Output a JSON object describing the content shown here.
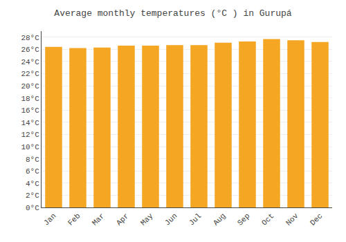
{
  "chart_data": {
    "type": "bar",
    "title": "Average monthly temperatures (°C ) in Gurupá",
    "categories": [
      "Jan",
      "Feb",
      "Mar",
      "Apr",
      "May",
      "Jun",
      "Jul",
      "Aug",
      "Sep",
      "Oct",
      "Nov",
      "Dec"
    ],
    "values": [
      26.4,
      26.2,
      26.3,
      26.6,
      26.6,
      26.7,
      26.7,
      27.1,
      27.3,
      27.7,
      27.5,
      27.2
    ],
    "color": "#F5A623",
    "ylim": [
      0,
      29
    ],
    "yticks": [
      {
        "value": 0,
        "label": "0°C"
      },
      {
        "value": 2,
        "label": "2°C"
      },
      {
        "value": 4,
        "label": "4°C"
      },
      {
        "value": 6,
        "label": "6°C"
      },
      {
        "value": 8,
        "label": "8°C"
      },
      {
        "value": 10,
        "label": "10°C"
      },
      {
        "value": 12,
        "label": "12°C"
      },
      {
        "value": 14,
        "label": "14°C"
      },
      {
        "value": 16,
        "label": "16°C"
      },
      {
        "value": 18,
        "label": "18°C"
      },
      {
        "value": 20,
        "label": "20°C"
      },
      {
        "value": 22,
        "label": "22°C"
      },
      {
        "value": 24,
        "label": "24°C"
      },
      {
        "value": 26,
        "label": "26°C"
      },
      {
        "value": 28,
        "label": "28°C"
      }
    ],
    "grid": true
  }
}
